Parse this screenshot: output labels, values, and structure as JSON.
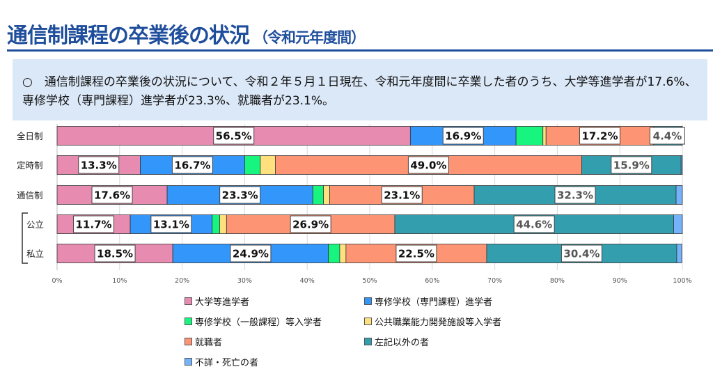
{
  "header": {
    "title": "通信制課程の卒業後の状況",
    "subtitle": "（令和元年度間）"
  },
  "callout": {
    "text": "○　通信制課程の卒業後の状況について、令和２年５月１日現在、令和元年度間に卒業した者のうち、大学等進学者が17.6%、専修学校（専門課程）進学者が23.3%、就職者が23.1%。"
  },
  "chart_data": {
    "type": "bar",
    "orientation": "horizontal-stacked-100",
    "categories": [
      "全日制",
      "定時制",
      "通信制",
      "公立",
      "私立"
    ],
    "bracket_group": [
      "公立",
      "私立"
    ],
    "xlim": [
      0,
      100
    ],
    "xticks": [
      "0%",
      "10%",
      "20%",
      "30%",
      "40%",
      "50%",
      "60%",
      "70%",
      "80%",
      "90%",
      "100%"
    ],
    "grid": true,
    "legend_position": "bottom",
    "series": [
      {
        "name": "大学等進学者",
        "color": "#e78bb0",
        "values": [
          56.5,
          13.3,
          17.6,
          11.7,
          18.5
        ],
        "labeled": [
          true,
          true,
          true,
          true,
          true
        ]
      },
      {
        "name": "専修学校（専門課程）進学者",
        "color": "#3396fb",
        "values": [
          16.9,
          16.7,
          23.3,
          13.1,
          24.9
        ],
        "labeled": [
          true,
          true,
          true,
          true,
          true
        ]
      },
      {
        "name": "専修学校（一般課程）等入学者",
        "color": "#17f57e",
        "values": [
          4.3,
          2.5,
          1.7,
          1.2,
          1.8
        ],
        "labeled": [
          false,
          false,
          false,
          false,
          false
        ]
      },
      {
        "name": "公共職業能力開発施設等入学者",
        "color": "#ffe07f",
        "values": [
          0.5,
          2.4,
          1.0,
          1.1,
          1.0
        ],
        "labeled": [
          false,
          false,
          false,
          false,
          false
        ]
      },
      {
        "name": "就職者",
        "color": "#fd9574",
        "values": [
          17.2,
          49.0,
          23.1,
          26.9,
          22.5
        ],
        "labeled": [
          true,
          true,
          true,
          true,
          true
        ]
      },
      {
        "name": "左記以外の者",
        "color": "#329eae",
        "values": [
          4.4,
          15.9,
          32.3,
          44.6,
          30.4
        ],
        "labeled": [
          true,
          true,
          true,
          true,
          true
        ]
      },
      {
        "name": "不詳・死亡の者",
        "color": "#74b2fc",
        "values": [
          0.2,
          0.2,
          1.0,
          1.4,
          0.8
        ],
        "labeled": [
          false,
          false,
          false,
          false,
          false
        ]
      }
    ]
  }
}
